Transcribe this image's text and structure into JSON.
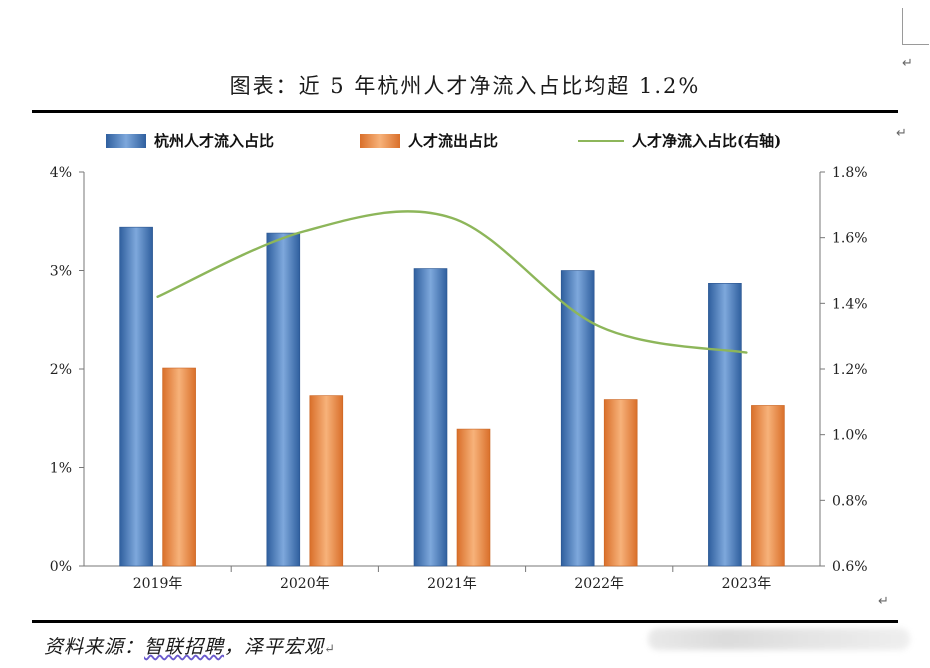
{
  "title": "图表：近 5 年杭州人才净流入占比均超 1.2%",
  "source": {
    "prefix": "资料来源：",
    "name1": "智联招聘",
    "sep": "，",
    "name2": "泽平宏观"
  },
  "colors": {
    "inflow": "#4a7fc1",
    "outflow": "#ef8f4a",
    "net": "#8db65a"
  },
  "chart_data": {
    "type": "bar",
    "categories": [
      "2019年",
      "2020年",
      "2021年",
      "2022年",
      "2023年"
    ],
    "series": [
      {
        "name": "杭州人才流入占比",
        "type": "bar",
        "axis": "left",
        "values": [
          3.44,
          3.38,
          3.02,
          3.0,
          2.87
        ]
      },
      {
        "name": "人才流出占比",
        "type": "bar",
        "axis": "left",
        "values": [
          2.01,
          1.73,
          1.39,
          1.69,
          1.63
        ]
      },
      {
        "name": "人才净流入占比(右轴)",
        "type": "line",
        "axis": "right",
        "values": [
          1.42,
          1.62,
          1.66,
          1.33,
          1.25
        ]
      }
    ],
    "y_left": {
      "ticks": [
        "0%",
        "1%",
        "2%",
        "3%",
        "4%"
      ],
      "min": 0,
      "max": 4
    },
    "y_right": {
      "ticks": [
        "0.6%",
        "0.8%",
        "1.0%",
        "1.2%",
        "1.4%",
        "1.6%",
        "1.8%"
      ],
      "min": 0.6,
      "max": 1.8
    },
    "legend_position": "top"
  }
}
